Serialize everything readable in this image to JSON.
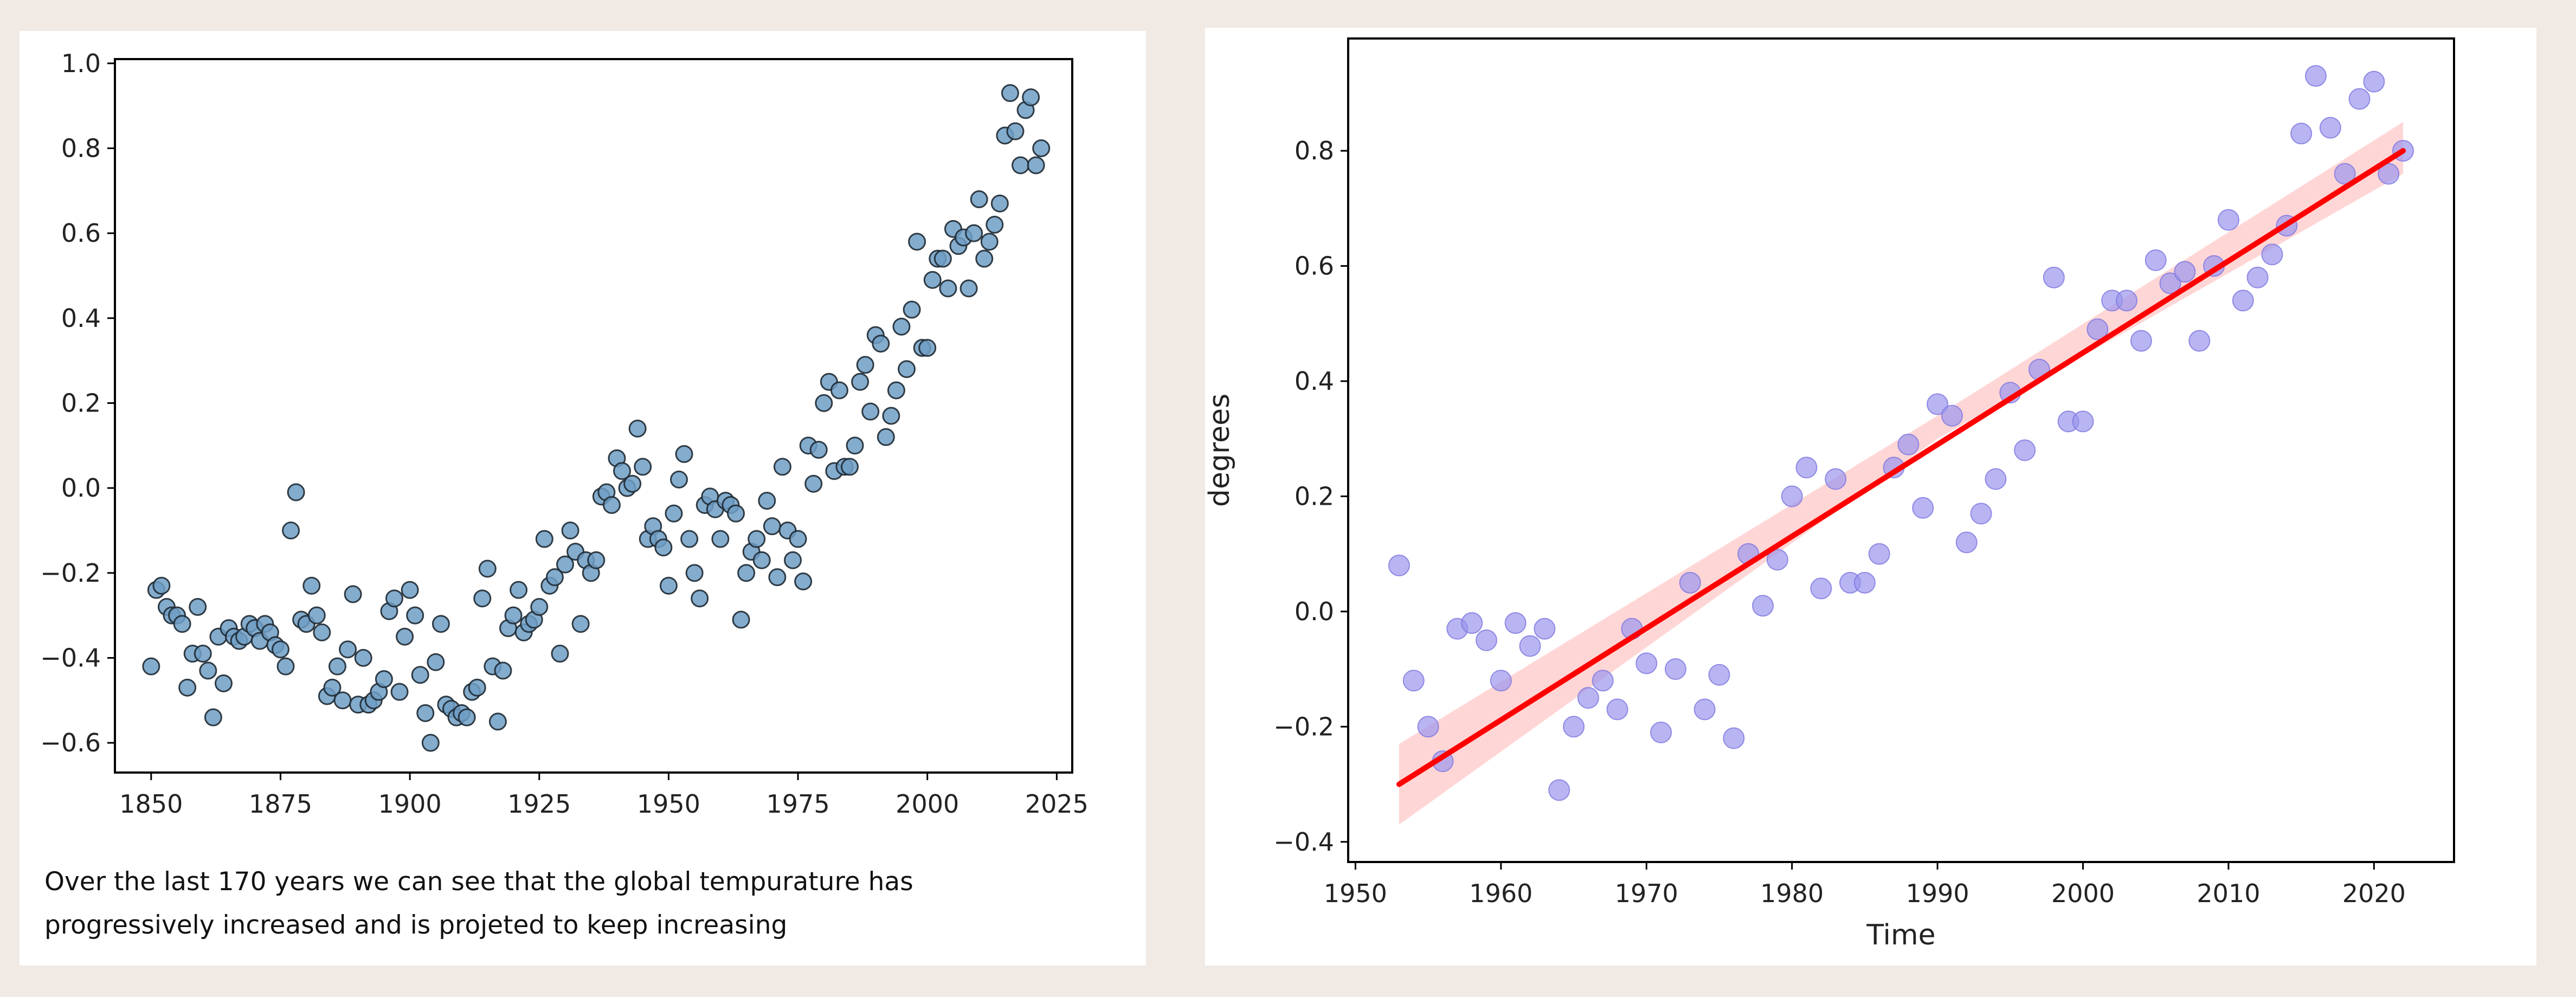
{
  "caption": {
    "line1": "Over the last 170 years we can see that the global tempurature has",
    "line2": "progressively increased and is projeted to keep increasing"
  },
  "colors": {
    "page_background": "#f1e9e4",
    "left_points": "#6f9ec4",
    "right_points": "#9b95ec",
    "regression_line": "#ff0000",
    "confidence_band": "#ffc8c8"
  },
  "chart_data": [
    {
      "type": "scatter",
      "title": "",
      "xlabel": "",
      "ylabel": "",
      "xlim": [
        1843,
        2028
      ],
      "ylim": [
        -0.67,
        1.01
      ],
      "xticks": [
        1850,
        1875,
        1900,
        1925,
        1950,
        1975,
        2000,
        2025
      ],
      "yticks": [
        -0.6,
        -0.4,
        -0.2,
        0.0,
        0.2,
        0.4,
        0.6,
        0.8,
        1.0
      ],
      "xtick_labels": [
        "1850",
        "1875",
        "1900",
        "1925",
        "1950",
        "1975",
        "2000",
        "2025"
      ],
      "ytick_labels": [
        "−0.6",
        "−0.4",
        "−0.2",
        "0.0",
        "0.2",
        "0.4",
        "0.6",
        "0.8",
        "1.0"
      ],
      "grid": false,
      "x": [
        1850,
        1851,
        1852,
        1853,
        1854,
        1855,
        1856,
        1857,
        1858,
        1859,
        1860,
        1861,
        1862,
        1863,
        1864,
        1865,
        1866,
        1867,
        1868,
        1869,
        1870,
        1871,
        1872,
        1873,
        1874,
        1875,
        1876,
        1877,
        1878,
        1879,
        1880,
        1881,
        1882,
        1883,
        1884,
        1885,
        1886,
        1887,
        1888,
        1889,
        1890,
        1891,
        1892,
        1893,
        1894,
        1895,
        1896,
        1897,
        1898,
        1899,
        1900,
        1901,
        1902,
        1903,
        1904,
        1905,
        1906,
        1907,
        1908,
        1909,
        1910,
        1911,
        1912,
        1913,
        1914,
        1915,
        1916,
        1917,
        1918,
        1919,
        1920,
        1921,
        1922,
        1923,
        1924,
        1925,
        1926,
        1927,
        1928,
        1929,
        1930,
        1931,
        1932,
        1933,
        1934,
        1935,
        1936,
        1937,
        1938,
        1939,
        1940,
        1941,
        1942,
        1943,
        1944,
        1945,
        1946,
        1947,
        1948,
        1949,
        1950,
        1951,
        1952,
        1953,
        1954,
        1955,
        1956,
        1957,
        1958,
        1959,
        1960,
        1961,
        1962,
        1963,
        1964,
        1965,
        1966,
        1967,
        1968,
        1969,
        1970,
        1971,
        1972,
        1973,
        1974,
        1975,
        1976,
        1977,
        1978,
        1979,
        1980,
        1981,
        1982,
        1983,
        1984,
        1985,
        1986,
        1987,
        1988,
        1989,
        1990,
        1991,
        1992,
        1993,
        1994,
        1995,
        1996,
        1997,
        1998,
        1999,
        2000,
        2001,
        2002,
        2003,
        2004,
        2005,
        2006,
        2007,
        2008,
        2009,
        2010,
        2011,
        2012,
        2013,
        2014,
        2015,
        2016,
        2017,
        2018,
        2019,
        2020,
        2021,
        2022
      ],
      "y": [
        -0.42,
        -0.24,
        -0.23,
        -0.28,
        -0.3,
        -0.3,
        -0.32,
        -0.47,
        -0.39,
        -0.28,
        -0.39,
        -0.43,
        -0.54,
        -0.35,
        -0.46,
        -0.33,
        -0.35,
        -0.36,
        -0.35,
        -0.32,
        -0.33,
        -0.36,
        -0.32,
        -0.34,
        -0.37,
        -0.38,
        -0.42,
        -0.1,
        -0.01,
        -0.31,
        -0.32,
        -0.23,
        -0.3,
        -0.34,
        -0.49,
        -0.47,
        -0.42,
        -0.5,
        -0.38,
        -0.25,
        -0.51,
        -0.4,
        -0.51,
        -0.5,
        -0.48,
        -0.45,
        -0.29,
        -0.26,
        -0.48,
        -0.35,
        -0.24,
        -0.3,
        -0.44,
        -0.53,
        -0.6,
        -0.41,
        -0.32,
        -0.51,
        -0.52,
        -0.54,
        -0.53,
        -0.54,
        -0.48,
        -0.47,
        -0.26,
        -0.19,
        -0.42,
        -0.55,
        -0.43,
        -0.33,
        -0.3,
        -0.24,
        -0.34,
        -0.32,
        -0.31,
        -0.28,
        -0.12,
        -0.23,
        -0.21,
        -0.39,
        -0.18,
        -0.1,
        -0.15,
        -0.32,
        -0.17,
        -0.2,
        -0.17,
        -0.02,
        -0.01,
        -0.04,
        0.07,
        0.04,
        0.0,
        0.01,
        0.14,
        0.05,
        -0.12,
        -0.09,
        -0.12,
        -0.14,
        -0.23,
        -0.06,
        0.02,
        0.08,
        -0.12,
        -0.2,
        -0.26,
        -0.04,
        -0.02,
        -0.05,
        -0.12,
        -0.03,
        -0.04,
        -0.06,
        -0.31,
        -0.2,
        -0.15,
        -0.12,
        -0.17,
        -0.03,
        -0.09,
        -0.21,
        0.05,
        -0.1,
        -0.17,
        -0.12,
        -0.22,
        0.1,
        0.01,
        0.09,
        0.2,
        0.25,
        0.04,
        0.23,
        0.05,
        0.05,
        0.1,
        0.25,
        0.29,
        0.18,
        0.36,
        0.34,
        0.12,
        0.17,
        0.23,
        0.38,
        0.28,
        0.42,
        0.58,
        0.33,
        0.33,
        0.49,
        0.54,
        0.54,
        0.47,
        0.61,
        0.57,
        0.59,
        0.47,
        0.6,
        0.68,
        0.54,
        0.58,
        0.62,
        0.67,
        0.83,
        0.93,
        0.84,
        0.76,
        0.89,
        0.92,
        0.76,
        0.8
      ]
    },
    {
      "type": "scatter",
      "title": "",
      "xlabel": "Time",
      "ylabel": "degrees",
      "xlim": [
        1949.5,
        2025.5
      ],
      "ylim": [
        -0.435,
        0.995
      ],
      "xticks": [
        1950,
        1960,
        1970,
        1980,
        1990,
        2000,
        2010,
        2020
      ],
      "yticks": [
        -0.4,
        -0.2,
        0.0,
        0.2,
        0.4,
        0.6,
        0.8
      ],
      "xtick_labels": [
        "1950",
        "1960",
        "1970",
        "1980",
        "1990",
        "2000",
        "2010",
        "2020"
      ],
      "ytick_labels": [
        "−0.4",
        "−0.2",
        "0.0",
        "0.2",
        "0.4",
        "0.6",
        "0.8"
      ],
      "grid": false,
      "x": [
        1953,
        1954,
        1955,
        1956,
        1957,
        1958,
        1959,
        1960,
        1961,
        1962,
        1963,
        1964,
        1965,
        1966,
        1967,
        1968,
        1969,
        1970,
        1971,
        1972,
        1973,
        1974,
        1975,
        1976,
        1977,
        1978,
        1979,
        1980,
        1981,
        1982,
        1983,
        1984,
        1985,
        1986,
        1987,
        1988,
        1989,
        1990,
        1991,
        1992,
        1993,
        1994,
        1995,
        1996,
        1997,
        1998,
        1999,
        2000,
        2001,
        2002,
        2003,
        2004,
        2005,
        2006,
        2007,
        2008,
        2009,
        2010,
        2011,
        2012,
        2013,
        2014,
        2015,
        2016,
        2017,
        2018,
        2019,
        2020,
        2021,
        2022
      ],
      "y": [
        0.08,
        -0.12,
        -0.2,
        -0.26,
        -0.03,
        -0.02,
        -0.05,
        -0.12,
        -0.02,
        -0.06,
        -0.03,
        -0.31,
        -0.2,
        -0.15,
        -0.12,
        -0.17,
        -0.03,
        -0.09,
        -0.21,
        -0.1,
        0.05,
        -0.17,
        -0.11,
        -0.22,
        0.1,
        0.01,
        0.09,
        0.2,
        0.25,
        0.04,
        0.23,
        0.05,
        0.05,
        0.1,
        0.25,
        0.29,
        0.18,
        0.36,
        0.34,
        0.12,
        0.17,
        0.23,
        0.38,
        0.28,
        0.42,
        0.58,
        0.33,
        0.33,
        0.49,
        0.54,
        0.54,
        0.47,
        0.61,
        0.57,
        0.59,
        0.47,
        0.6,
        0.68,
        0.54,
        0.58,
        0.62,
        0.67,
        0.83,
        0.93,
        0.84,
        0.76,
        0.89,
        0.92,
        0.76,
        0.8
      ],
      "regression": {
        "x": [
          1953,
          2022
        ],
        "y": [
          -0.3,
          0.8
        ]
      },
      "confidence_band": {
        "x": [
          1953,
          1990,
          2022
        ],
        "lower": [
          -0.37,
          0.3,
          0.76
        ],
        "upper": [
          -0.23,
          0.34,
          0.85
        ]
      }
    }
  ]
}
